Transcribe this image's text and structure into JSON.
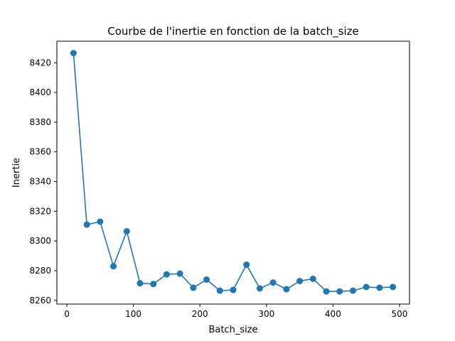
{
  "chart_data": {
    "type": "line",
    "title": "Courbe de l'inertie en fonction de la batch_size",
    "xlabel": "Batch_size",
    "ylabel": "Inertie",
    "xlim": [
      -15,
      515
    ],
    "ylim": [
      8257.5,
      8434.5
    ],
    "xticks": [
      0,
      100,
      200,
      300,
      400,
      500
    ],
    "yticks": [
      8260,
      8280,
      8300,
      8320,
      8340,
      8360,
      8380,
      8400,
      8420
    ],
    "grid": false,
    "marker": "circle",
    "color": "#1f77b4",
    "series": [
      {
        "x": [
          10,
          30,
          50,
          70,
          90,
          110,
          130,
          150,
          170,
          190,
          210,
          230,
          250,
          270,
          290,
          310,
          330,
          350,
          370,
          390,
          410,
          430,
          450,
          470,
          490
        ],
        "y": [
          8426.5,
          8311,
          8313,
          8283,
          8306.5,
          8271.5,
          8271,
          8277.5,
          8278,
          8268.5,
          8274,
          8266.5,
          8267,
          8284,
          8268,
          8272,
          8267.5,
          8273,
          8274.5,
          8266,
          8266,
          8266.5,
          8269,
          8268.5,
          8269
        ]
      }
    ]
  }
}
